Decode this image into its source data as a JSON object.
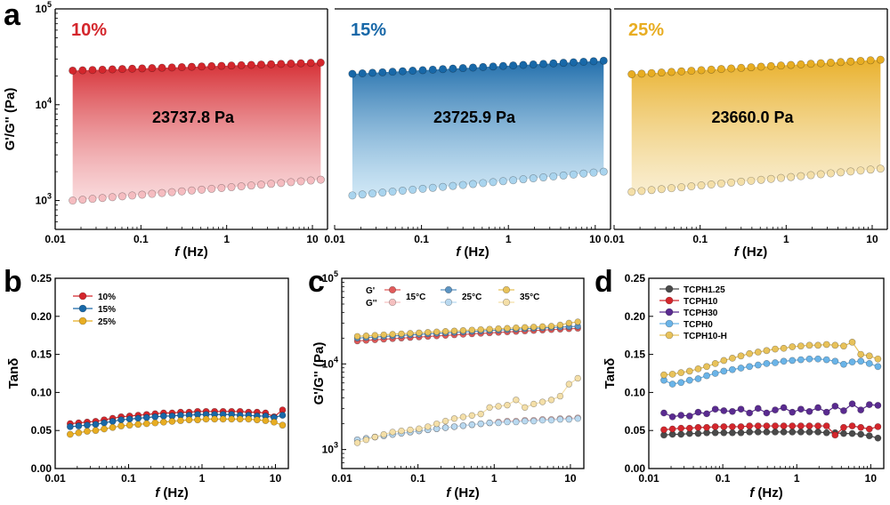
{
  "panel_letters": [
    "a",
    "b",
    "c",
    "d"
  ],
  "chart_data": [
    {
      "id": "a",
      "type": "line",
      "subtype": "band-between-two-series (three subpanels)",
      "xscale": "log",
      "yscale": "log",
      "xlim": [
        0.01,
        15
      ],
      "ylim": [
        500,
        100000
      ],
      "xlabel_italic": "f",
      "xlabel": " (Hz)",
      "ylabel": "G'/G'' (Pa)",
      "x_ticks": [
        "0.01",
        "0.1",
        "1",
        "10"
      ],
      "y_ticks": [
        {
          "base": "10",
          "exp": "3",
          "value": 1000
        },
        {
          "base": "10",
          "exp": "4",
          "value": 10000
        },
        {
          "base": "10",
          "exp": "5",
          "value": 100000
        }
      ],
      "subpanels": [
        {
          "label": "10%",
          "color": "#d4262c",
          "light_color": "#f5bcc0",
          "value_label": "23737.8 Pa",
          "Gp": {
            "x_start": 0.016,
            "x_end": 12.5,
            "y_start": 22700,
            "y_end": 27500
          },
          "Gpp": {
            "x_start": 0.016,
            "x_end": 12.5,
            "y_start": 1000,
            "y_end": 1650
          }
        },
        {
          "label": "15%",
          "color": "#1868a8",
          "light_color": "#a9d4ee",
          "value_label": "23725.9 Pa",
          "Gp": {
            "x_start": 0.016,
            "x_end": 12.5,
            "y_start": 21000,
            "y_end": 28800
          },
          "Gpp": {
            "x_start": 0.016,
            "x_end": 12.5,
            "y_start": 1130,
            "y_end": 2000
          }
        },
        {
          "label": "25%",
          "color": "#e8ad22",
          "light_color": "#f4dfa8",
          "value_label": "23660.0 Pa",
          "Gp": {
            "x_start": 0.016,
            "x_end": 12.5,
            "y_start": 20800,
            "y_end": 29500
          },
          "Gpp": {
            "x_start": 0.016,
            "x_end": 12.5,
            "y_start": 1230,
            "y_end": 2150
          }
        }
      ]
    },
    {
      "id": "b",
      "type": "line",
      "xscale": "log",
      "yscale": "linear",
      "xlim": [
        0.01,
        15
      ],
      "ylim": [
        0,
        0.25
      ],
      "xlabel_italic": "f",
      "xlabel": " (Hz)",
      "ylabel": "Tanδ",
      "x_ticks": [
        "0.01",
        "0.1",
        "1",
        "10"
      ],
      "y_ticks": [
        "0.00",
        "0.05",
        "0.10",
        "0.15",
        "0.20",
        "0.25"
      ],
      "legend": {
        "placement": "top-left"
      },
      "series": [
        {
          "name": "10%",
          "color": "#d4262c",
          "y": [
            0.059,
            0.06,
            0.061,
            0.062,
            0.064,
            0.066,
            0.068,
            0.069,
            0.07,
            0.071,
            0.072,
            0.073,
            0.073,
            0.074,
            0.074,
            0.075,
            0.075,
            0.075,
            0.075,
            0.075,
            0.075,
            0.074,
            0.074,
            0.073,
            0.068,
            0.077
          ]
        },
        {
          "name": "15%",
          "color": "#1868a8",
          "y": [
            0.055,
            0.056,
            0.057,
            0.058,
            0.06,
            0.062,
            0.064,
            0.065,
            0.066,
            0.067,
            0.068,
            0.069,
            0.069,
            0.07,
            0.07,
            0.071,
            0.071,
            0.071,
            0.071,
            0.071,
            0.07,
            0.07,
            0.069,
            0.069,
            0.067,
            0.07
          ]
        },
        {
          "name": "25%",
          "color": "#e8ad22",
          "y": [
            0.045,
            0.047,
            0.049,
            0.05,
            0.052,
            0.054,
            0.056,
            0.057,
            0.058,
            0.059,
            0.06,
            0.061,
            0.062,
            0.063,
            0.064,
            0.064,
            0.065,
            0.065,
            0.065,
            0.065,
            0.065,
            0.065,
            0.064,
            0.063,
            0.061,
            0.057
          ]
        }
      ]
    },
    {
      "id": "c",
      "type": "line",
      "xscale": "log",
      "yscale": "log",
      "xlim": [
        0.01,
        15
      ],
      "ylim": [
        600,
        100000
      ],
      "xlabel_italic": "f",
      "xlabel": " (Hz)",
      "ylabel": "G'/G'' (Pa)",
      "x_ticks": [
        "0.01",
        "0.1",
        "1",
        "10"
      ],
      "y_ticks": [
        {
          "base": "10",
          "exp": "3",
          "value": 1000
        },
        {
          "base": "10",
          "exp": "4",
          "value": 10000
        },
        {
          "base": "10",
          "exp": "5",
          "value": 100000
        }
      ],
      "legend": {
        "placement": "top",
        "row_labels": [
          "G'",
          "G''"
        ],
        "entries": [
          "15°C",
          "25°C",
          "35°C"
        ]
      },
      "series": [
        {
          "name": "15°C",
          "color": "#e05a5a",
          "light_color": "#f5c0c0",
          "Gp": [
            18500,
            18800,
            19100,
            19400,
            19700,
            20000,
            20300,
            20600,
            20900,
            21200,
            21500,
            21800,
            22100,
            22400,
            22700,
            23000,
            23300,
            23600,
            23900,
            24200,
            24500,
            24800,
            25100,
            25400,
            25700,
            26000
          ],
          "Gpp": [
            1300,
            1350,
            1400,
            1450,
            1500,
            1550,
            1600,
            1650,
            1700,
            1750,
            1800,
            1850,
            1900,
            1950,
            2000,
            2050,
            2100,
            2150,
            2150,
            2200,
            2200,
            2250,
            2250,
            2300,
            2300,
            2350
          ]
        },
        {
          "name": "25°C",
          "color": "#5b93c2",
          "light_color": "#b9d9f0",
          "Gp": [
            20000,
            20300,
            20600,
            20900,
            21200,
            21500,
            21800,
            22100,
            22400,
            22700,
            23000,
            23300,
            23600,
            23900,
            24200,
            24500,
            24800,
            25100,
            25400,
            25700,
            26000,
            26300,
            26600,
            26900,
            27200,
            27500
          ],
          "Gpp": [
            1300,
            1350,
            1400,
            1450,
            1500,
            1550,
            1600,
            1650,
            1700,
            1750,
            1800,
            1850,
            1900,
            1950,
            2000,
            2050,
            2050,
            2100,
            2100,
            2150,
            2150,
            2200,
            2200,
            2250,
            2250,
            2300
          ]
        },
        {
          "name": "35°C",
          "color": "#e8c25a",
          "light_color": "#f4dfa8",
          "Gp": [
            21000,
            21300,
            21600,
            21900,
            22200,
            22500,
            22800,
            23100,
            23400,
            23700,
            24000,
            24300,
            24600,
            24900,
            25200,
            25500,
            25800,
            26100,
            26400,
            26700,
            27000,
            27300,
            27600,
            28500,
            30000,
            31000
          ],
          "Gpp": [
            1200,
            1300,
            1400,
            1500,
            1600,
            1650,
            1700,
            1750,
            1850,
            2000,
            2150,
            2300,
            2400,
            2500,
            2600,
            3100,
            3200,
            3300,
            3800,
            3100,
            3400,
            3600,
            3800,
            4200,
            5800,
            6800
          ]
        }
      ]
    },
    {
      "id": "d",
      "type": "line",
      "xscale": "log",
      "yscale": "linear",
      "xlim": [
        0.01,
        15
      ],
      "ylim": [
        0,
        0.25
      ],
      "xlabel_italic": "f",
      "xlabel": " (Hz)",
      "ylabel": "Tanδ",
      "x_ticks": [
        "0.01",
        "0.1",
        "1",
        "10"
      ],
      "y_ticks": [
        "0.00",
        "0.05",
        "0.10",
        "0.15",
        "0.20",
        "0.25"
      ],
      "legend": {
        "placement": "top-left"
      },
      "series": [
        {
          "name": "TCPH1.25",
          "color": "#4a4a4a",
          "y": [
            0.044,
            0.045,
            0.045,
            0.046,
            0.046,
            0.047,
            0.047,
            0.047,
            0.047,
            0.047,
            0.048,
            0.048,
            0.048,
            0.048,
            0.048,
            0.048,
            0.048,
            0.048,
            0.048,
            0.047,
            0.047,
            0.046,
            0.046,
            0.045,
            0.043,
            0.04
          ]
        },
        {
          "name": "TCPH10",
          "color": "#d4262c",
          "y": [
            0.051,
            0.052,
            0.053,
            0.053,
            0.054,
            0.054,
            0.055,
            0.055,
            0.055,
            0.055,
            0.056,
            0.056,
            0.056,
            0.056,
            0.056,
            0.056,
            0.056,
            0.056,
            0.056,
            0.056,
            0.044,
            0.054,
            0.056,
            0.054,
            0.052,
            0.055
          ]
        },
        {
          "name": "TCPH30",
          "color": "#5a2b90",
          "y": [
            0.073,
            0.068,
            0.07,
            0.069,
            0.074,
            0.072,
            0.078,
            0.076,
            0.075,
            0.078,
            0.073,
            0.079,
            0.073,
            0.077,
            0.08,
            0.074,
            0.078,
            0.075,
            0.08,
            0.074,
            0.082,
            0.076,
            0.085,
            0.077,
            0.084,
            0.083
          ]
        },
        {
          "name": "TCPH0",
          "color": "#6ab4e8",
          "y": [
            0.116,
            0.111,
            0.113,
            0.116,
            0.118,
            0.122,
            0.125,
            0.128,
            0.13,
            0.132,
            0.134,
            0.136,
            0.138,
            0.139,
            0.141,
            0.142,
            0.143,
            0.144,
            0.144,
            0.143,
            0.141,
            0.137,
            0.14,
            0.141,
            0.138,
            0.134
          ]
        },
        {
          "name": "TCPH10-H",
          "color": "#e8c25a",
          "y": [
            0.123,
            0.124,
            0.126,
            0.128,
            0.131,
            0.134,
            0.138,
            0.142,
            0.145,
            0.148,
            0.151,
            0.153,
            0.155,
            0.157,
            0.158,
            0.16,
            0.161,
            0.162,
            0.162,
            0.163,
            0.162,
            0.161,
            0.166,
            0.15,
            0.148,
            0.144
          ]
        }
      ]
    }
  ]
}
